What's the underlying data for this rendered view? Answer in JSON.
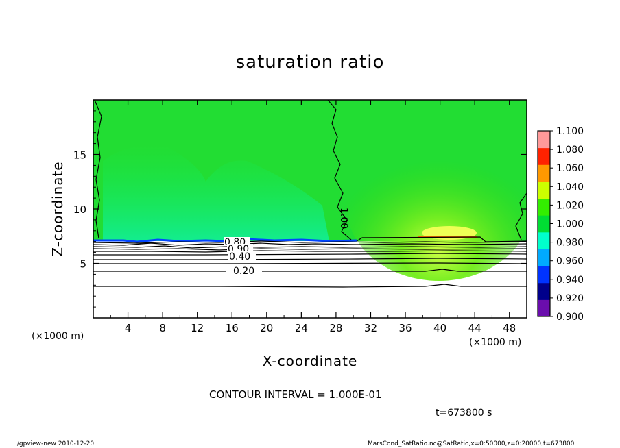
{
  "chart_data": {
    "type": "heatmap",
    "title": "saturation ratio",
    "xlabel": "X-coordinate",
    "ylabel": "Z-coordinate",
    "x_unit_label": "(×1000 m)",
    "xlim": [
      0,
      50
    ],
    "ylim": [
      0,
      20
    ],
    "x_ticks": [
      4,
      8,
      12,
      16,
      20,
      24,
      28,
      32,
      36,
      40,
      44,
      48
    ],
    "y_ticks": [
      5,
      10,
      15
    ],
    "colorbar": {
      "levels": [
        0.9,
        0.92,
        0.94,
        0.96,
        0.98,
        1.0,
        1.02,
        1.04,
        1.06,
        1.08,
        1.1
      ],
      "level_labels": [
        "0.900",
        "0.920",
        "0.940",
        "0.960",
        "0.980",
        "1.000",
        "1.020",
        "1.040",
        "1.060",
        "1.080",
        "1.100"
      ],
      "colors": [
        "#6a0dad",
        "#00008b",
        "#0033ff",
        "#00aaff",
        "#00ffcc",
        "#00dd33",
        "#33ee00",
        "#ccff00",
        "#ff9900",
        "#ff2200",
        "#ff9999"
      ]
    },
    "contour_labels": [
      "1.00",
      "0.80",
      "0.90",
      "0.40",
      "0.20"
    ],
    "contour_interval_text": "CONTOUR INTERVAL = 1.000E-01",
    "time_text": "t=673800 s"
  },
  "footer": {
    "left": "./gpview-new   2010-12-20",
    "right": "MarsCond_SatRatio.nc@SatRatio,x=0:50000,z=0:20000,t=673800"
  }
}
